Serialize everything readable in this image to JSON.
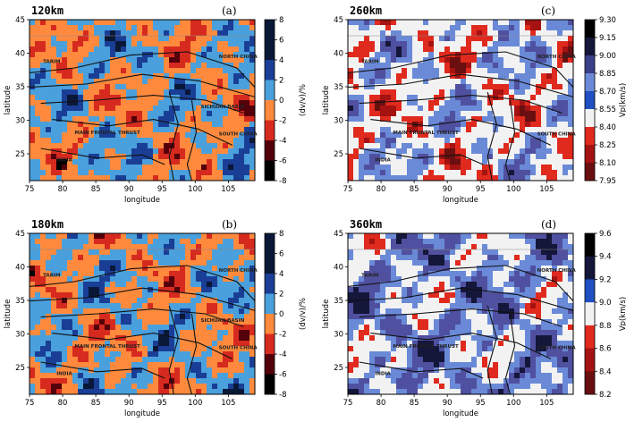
{
  "palettes": {
    "dv": [
      "#000000",
      "#54000a",
      "#d72a1f",
      "#ff8a3d",
      "#4aa0dc",
      "#1a3e96",
      "#0a1838"
    ],
    "vp": [
      "#f2f2f2",
      "#14163a",
      "#5050a0",
      "#6a8ad8",
      "#f2f2f2",
      "#f2f2f2",
      "#e02a1e",
      "#a51212",
      "#6a0f10"
    ]
  },
  "chart_data": [
    {
      "type": "heatmap",
      "panel": "(a)",
      "title": "120km",
      "xlabel": "longitude",
      "ylabel": "latitude",
      "xlim": [
        75,
        109
      ],
      "ylim": [
        21,
        45
      ],
      "xticks": [
        75,
        80,
        85,
        90,
        95,
        100,
        105
      ],
      "yticks": [
        25,
        30,
        35,
        40,
        45
      ],
      "colorbar": {
        "label": "(dv/v)/%",
        "ticks": [
          8,
          6,
          4,
          2,
          0,
          -2,
          -4,
          -6,
          -8
        ],
        "palette": "dv"
      },
      "geo_labels": [
        "TARIM",
        "NORTH CHINA",
        "SOUTH CHINA",
        "INDIA",
        "MAIN FRONTAL THRUST",
        "SICHUAN BASIN"
      ]
    },
    {
      "type": "heatmap",
      "panel": "(b)",
      "title": "180km",
      "xlabel": "longitude",
      "ylabel": "latitude",
      "xlim": [
        75,
        109
      ],
      "ylim": [
        21,
        45
      ],
      "xticks": [
        75,
        80,
        85,
        90,
        95,
        100,
        105
      ],
      "yticks": [
        25,
        30,
        35,
        40,
        45
      ],
      "colorbar": {
        "label": "(dv/v)/%",
        "ticks": [
          8,
          6,
          4,
          2,
          0,
          -2,
          -4,
          -6,
          -8
        ],
        "palette": "dv"
      },
      "geo_labels": [
        "TARIM",
        "NORTH CHINA",
        "SOUTH CHINA",
        "INDIA",
        "MAIN FRONTAL THRUST",
        "SICHUAN BASIN"
      ]
    },
    {
      "type": "heatmap",
      "panel": "(c)",
      "title": "260km",
      "xlabel": "longitude",
      "ylabel": "latitude",
      "xlim": [
        75,
        109
      ],
      "ylim": [
        21,
        45
      ],
      "xticks": [
        75,
        80,
        85,
        90,
        95,
        100,
        105
      ],
      "yticks": [
        25,
        30,
        35,
        40,
        45
      ],
      "colorbar": {
        "label": "Vp(km/s)",
        "ticks": [
          9.3,
          9.15,
          9.0,
          8.85,
          8.7,
          8.55,
          8.4,
          8.25,
          8.1,
          7.95
        ],
        "palette": "vp"
      },
      "geo_labels": [
        "TARIM",
        "NORTH CHINA",
        "SOUTH CHINA",
        "INDIA",
        "MAIN FRONTAL THRUST"
      ]
    },
    {
      "type": "heatmap",
      "panel": "(d)",
      "title": "360km",
      "xlabel": "longitude",
      "ylabel": "latitude",
      "xlim": [
        75,
        109
      ],
      "ylim": [
        21,
        45
      ],
      "xticks": [
        75,
        80,
        85,
        90,
        95,
        100,
        105
      ],
      "yticks": [
        25,
        30,
        35,
        40,
        45
      ],
      "colorbar": {
        "label": "Vp(km/s)",
        "ticks": [
          9.6,
          9.4,
          9.2,
          9.0,
          8.8,
          8.6,
          8.4,
          8.2
        ],
        "palette": "vp"
      },
      "geo_labels": [
        "TARIM",
        "NORTH CHINA",
        "SOUTH CHINA",
        "INDIA",
        "MAIN FRONTAL THRUST"
      ]
    }
  ]
}
